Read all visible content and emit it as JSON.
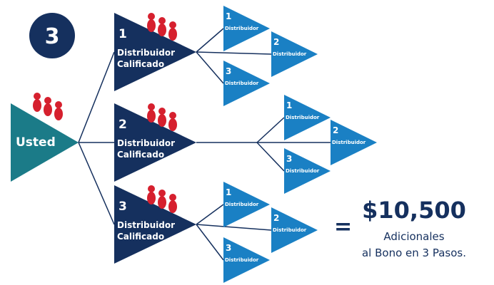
{
  "step": "3",
  "root": "Usted",
  "branches": [
    {
      "number": "1",
      "label": [
        "Distribuidor",
        "Calificado"
      ],
      "children": [
        {
          "number": "1",
          "label": "Distribuidor"
        },
        {
          "number": "2",
          "label": "Distribuidor"
        },
        {
          "number": "3",
          "label": "Distribuidor"
        }
      ]
    },
    {
      "number": "2",
      "label": [
        "Distribuidor",
        "Calificado"
      ],
      "children": [
        {
          "number": "1",
          "label": "Distribuidor"
        },
        {
          "number": "2",
          "label": "Distribuidor"
        },
        {
          "number": "3",
          "label": "Distribuidor"
        }
      ]
    },
    {
      "number": "3",
      "label": [
        "Distribuidor",
        "Calificado"
      ],
      "children": [
        {
          "number": "1",
          "label": "Distribuidor"
        },
        {
          "number": "2",
          "label": "Distribuidor"
        },
        {
          "number": "3",
          "label": "Distribuidor"
        }
      ]
    }
  ],
  "result": {
    "equals": "=",
    "amount": "$10,500",
    "lines": [
      "Adicionales",
      "al Bono en 3 Pasos."
    ]
  }
}
